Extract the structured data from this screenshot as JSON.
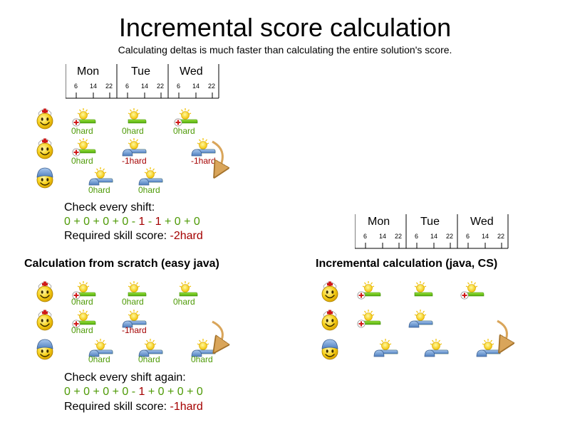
{
  "title": "Incremental score calculation",
  "subtitle": "Calculating deltas is much faster than calculating the entire solution's score.",
  "timeline": {
    "days": [
      "Mon",
      "Tue",
      "Wed"
    ],
    "hours": [
      "6",
      "14",
      "22"
    ]
  },
  "top": {
    "rows": [
      {
        "employee": "nurse",
        "shifts": [
          {
            "type": "nurse",
            "score": "0hard",
            "tone": "ok"
          },
          {
            "type": "plain",
            "score": "0hard",
            "tone": "ok"
          },
          {
            "type": "nurse",
            "score": "0hard",
            "tone": "ok"
          }
        ]
      },
      {
        "employee": "nurse",
        "shifts": [
          {
            "type": "nurse",
            "score": "0hard",
            "tone": "ok"
          },
          {
            "type": "cap",
            "score": "-1hard",
            "tone": "bad"
          },
          {
            "type": "cap",
            "score": "-1hard",
            "tone": "bad"
          }
        ]
      },
      {
        "employee": "cap",
        "shifts": [
          {
            "type": "cap",
            "score": "0hard",
            "tone": "ok"
          },
          {
            "type": "cap",
            "score": "0hard",
            "tone": "ok"
          }
        ]
      }
    ],
    "check_label": "Check every shift:",
    "sum": [
      {
        "text": "0 + 0 + 0 + 0",
        "tone": "ok"
      },
      {
        "text": " - ",
        "tone": "ok"
      },
      {
        "text": "1",
        "tone": "bad"
      },
      {
        "text": " - ",
        "tone": "ok"
      },
      {
        "text": "1",
        "tone": "bad"
      },
      {
        "text": " + 0 + 0",
        "tone": "ok"
      }
    ],
    "result_label": "Required skill score: ",
    "result_value": "-2hard"
  },
  "scratch": {
    "heading": "Calculation from scratch (easy java)",
    "rows": [
      {
        "employee": "nurse",
        "shifts": [
          {
            "type": "nurse",
            "score": "0hard",
            "tone": "ok"
          },
          {
            "type": "plain",
            "score": "0hard",
            "tone": "ok"
          },
          {
            "type": "plain",
            "score": "0hard",
            "tone": "ok"
          }
        ]
      },
      {
        "employee": "nurse",
        "shifts": [
          {
            "type": "nurse",
            "score": "0hard",
            "tone": "ok"
          },
          {
            "type": "cap",
            "score": "-1hard",
            "tone": "bad"
          }
        ]
      },
      {
        "employee": "cap",
        "shifts": [
          {
            "type": "cap",
            "score": "0hard",
            "tone": "ok"
          },
          {
            "type": "cap",
            "score": "0hard",
            "tone": "ok"
          },
          {
            "type": "cap",
            "score": "0hard",
            "tone": "ok"
          }
        ]
      }
    ],
    "check_label": "Check every shift again:",
    "sum": [
      {
        "text": "0 + 0 + 0 + 0",
        "tone": "ok"
      },
      {
        "text": " - ",
        "tone": "ok"
      },
      {
        "text": "1",
        "tone": "bad"
      },
      {
        "text": " + 0 + 0 + 0",
        "tone": "ok"
      }
    ],
    "result_label": "Required skill score: ",
    "result_value": "-1hard"
  },
  "incremental": {
    "heading": "Incremental calculation (java, CS)",
    "rows": [
      {
        "employee": "nurse",
        "shifts": [
          {
            "type": "nurse"
          },
          {
            "type": "plain"
          },
          {
            "type": "nurse"
          }
        ]
      },
      {
        "employee": "nurse",
        "shifts": [
          {
            "type": "nurse"
          },
          {
            "type": "cap"
          }
        ]
      },
      {
        "employee": "cap",
        "shifts": [
          {
            "type": "cap"
          },
          {
            "type": "cap"
          },
          {
            "type": "cap"
          }
        ]
      }
    ]
  }
}
